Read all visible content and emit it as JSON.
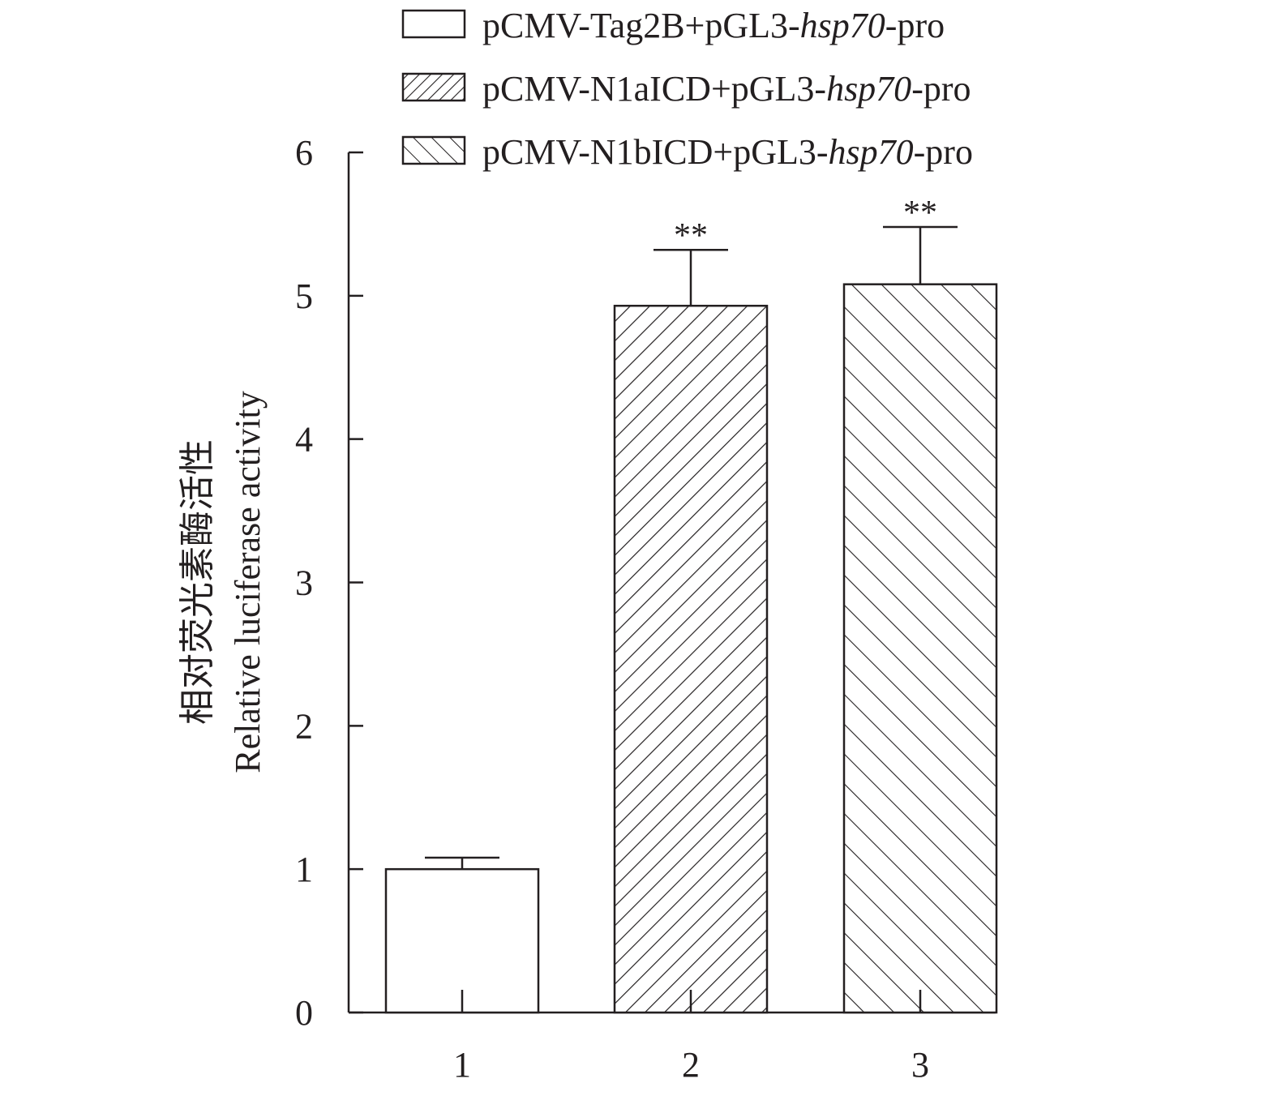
{
  "chart_data": {
    "type": "bar",
    "categories": [
      "1",
      "2",
      "3"
    ],
    "values": [
      1.0,
      4.93,
      5.08
    ],
    "errors": [
      0.08,
      0.39,
      0.4
    ],
    "significance": [
      "",
      "**",
      "**"
    ],
    "ylabel_cn": "相对荧光素酶活性",
    "ylabel_en": "Relative luciferase activity",
    "xlabel": "",
    "ylim": [
      0,
      6
    ],
    "yticks": [
      "0",
      "1",
      "2",
      "3",
      "4",
      "5",
      "6"
    ],
    "legend_position": "top",
    "legend": [
      {
        "pattern": "solid",
        "text": {
          "pre": "pCMV-Tag2B+pGL3-",
          "italic": "hsp70",
          "post": "-pro"
        }
      },
      {
        "pattern": "diagonal-right",
        "text": {
          "pre": "pCMV-N1aICD+pGL3-",
          "italic": "hsp70",
          "post": "-pro"
        }
      },
      {
        "pattern": "diagonal-left",
        "text": {
          "pre": "pCMV-N1bICD+pGL3-",
          "italic": "hsp70",
          "post": "-pro"
        }
      }
    ],
    "colors": {
      "stroke": "#231f20",
      "fill": "#ffffff"
    },
    "grid": false
  }
}
